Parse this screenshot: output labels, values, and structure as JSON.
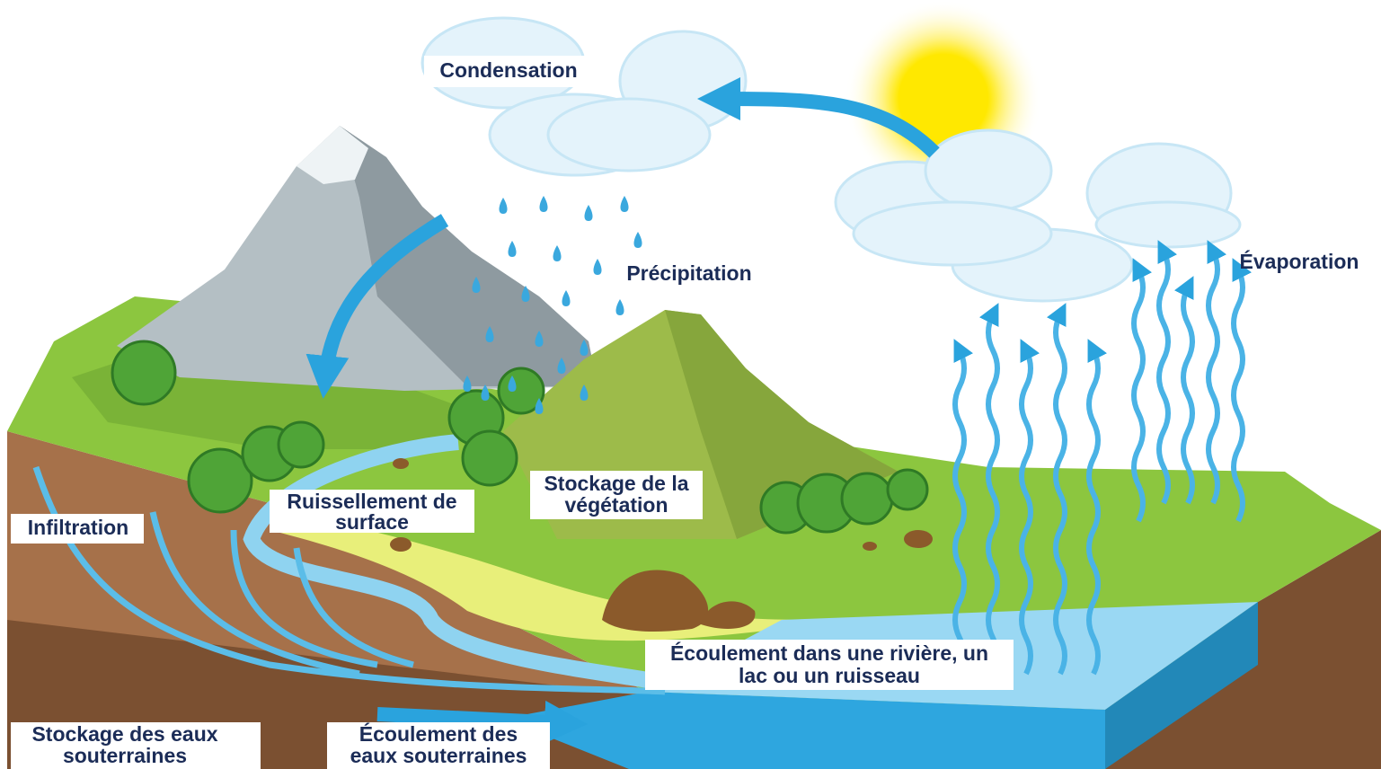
{
  "labels": {
    "condensation": "Condensation",
    "precipitation": "Précipitation",
    "evaporation": "Évaporation",
    "runoff": {
      "lines": [
        "Ruissellement de",
        "surface"
      ]
    },
    "vegetation": {
      "lines": [
        "Stockage de la",
        "végétation"
      ]
    },
    "infiltration": "Infiltration",
    "stream": {
      "lines": [
        "Écoulement dans une rivière, un",
        "lac ou un ruisseau"
      ]
    },
    "groundwater_storage": {
      "lines": [
        "Stockage des eaux",
        "souterraines"
      ]
    },
    "groundwater_flow": {
      "lines": [
        "Écoulement des",
        "eaux souterraines"
      ]
    }
  }
}
